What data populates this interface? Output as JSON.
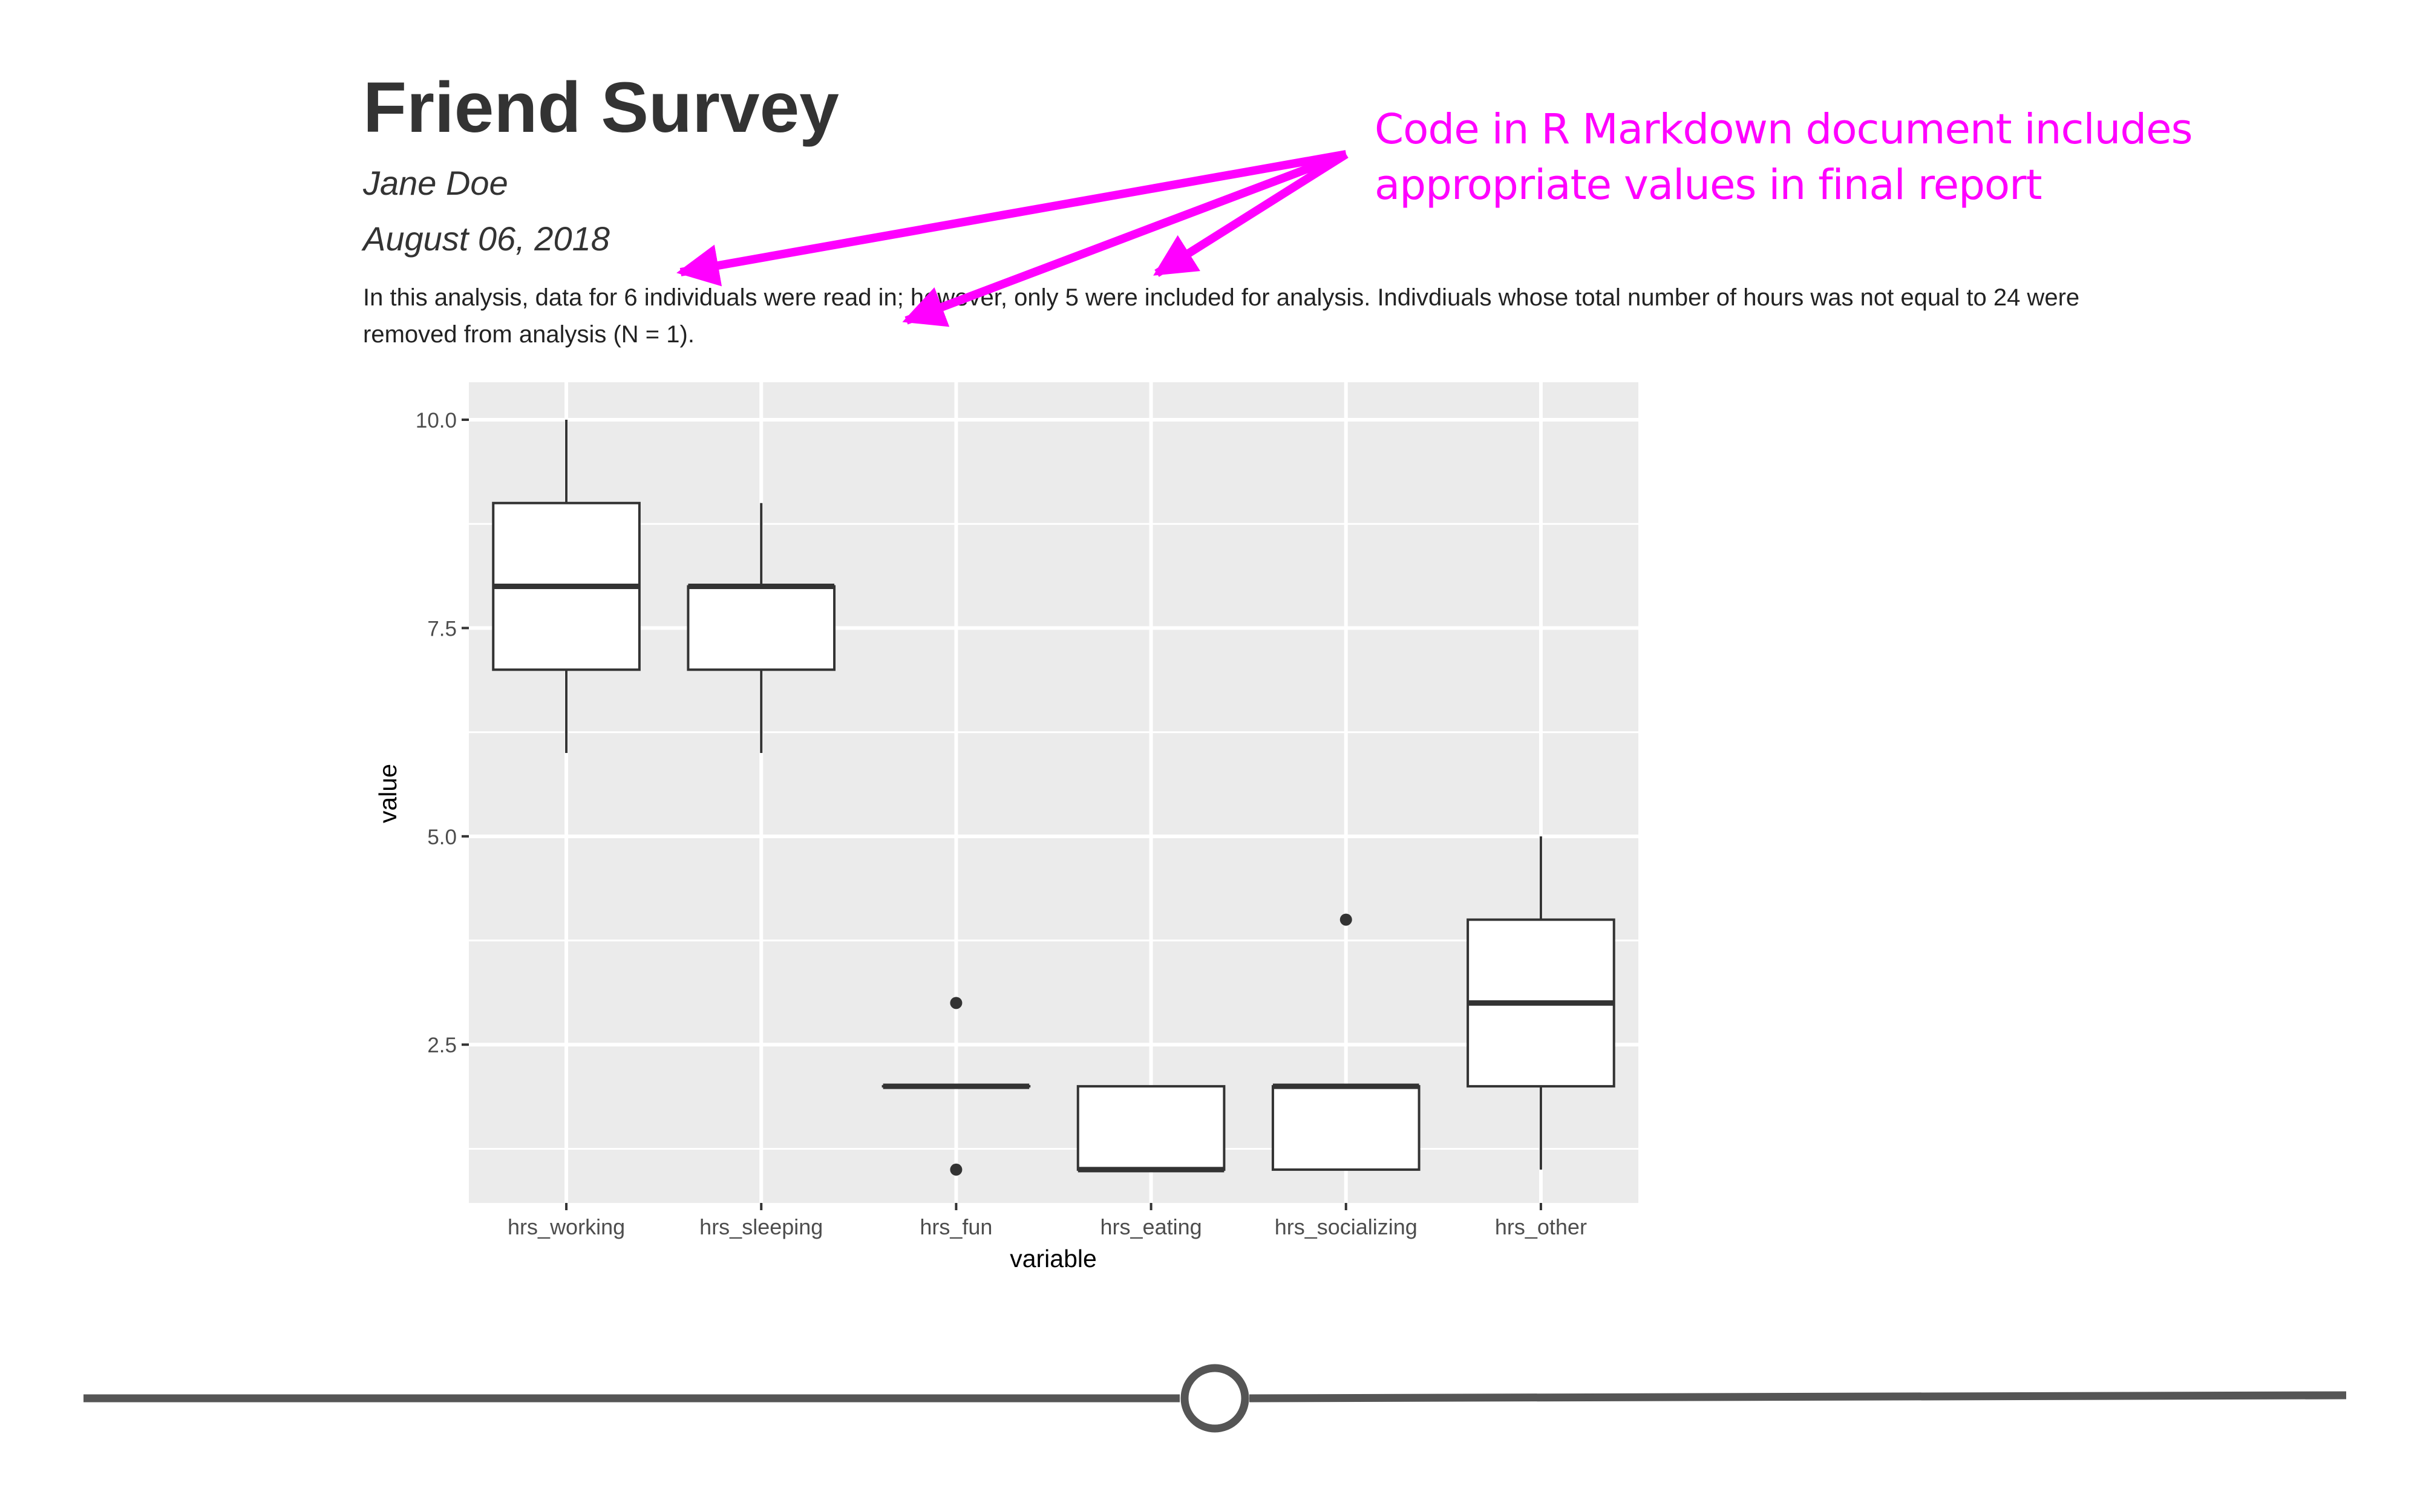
{
  "document": {
    "title": "Friend Survey",
    "author": "Jane Doe",
    "date": "August 06, 2018",
    "body_text": "In this analysis, data for 6 individuals were read in; however, only 5 were included for analysis. Indivdiuals whose total number of hours was not equal to 24 were removed from analysis (N = 1)."
  },
  "annotation": {
    "line1": "Code in R Markdown document includes",
    "line2": "appropriate values in final report",
    "color": "#ff00ff"
  },
  "slider": {
    "value": 0.5
  },
  "colors": {
    "panel": "#ebebeb",
    "grid": "#ffffff",
    "box_fill": "#ffffff",
    "box_stroke": "#333333",
    "axis_text": "#4d4d4d"
  },
  "chart_data": {
    "type": "box",
    "title": "",
    "xlabel": "variable",
    "ylabel": "value",
    "ylim": [
      0.6,
      10.45
    ],
    "yticks": [
      2.5,
      5.0,
      7.5,
      10.0
    ],
    "ytick_labels": [
      "2.5",
      "5.0",
      "7.5",
      "10.0"
    ],
    "minor_grid_y": [
      1.25,
      3.75,
      6.25,
      8.75
    ],
    "grid": true,
    "categories": [
      "hrs_working",
      "hrs_sleeping",
      "hrs_fun",
      "hrs_eating",
      "hrs_socializing",
      "hrs_other"
    ],
    "boxes": [
      {
        "category": "hrs_working",
        "whisker_low": 6,
        "q1": 7,
        "median": 8,
        "q3": 9,
        "whisker_high": 10,
        "outliers": []
      },
      {
        "category": "hrs_sleeping",
        "whisker_low": 6,
        "q1": 7,
        "median": 8,
        "q3": 8,
        "whisker_high": 9,
        "outliers": []
      },
      {
        "category": "hrs_fun",
        "whisker_low": 2,
        "q1": 2,
        "median": 2,
        "q3": 2,
        "whisker_high": 2,
        "outliers": [
          3,
          1
        ]
      },
      {
        "category": "hrs_eating",
        "whisker_low": 1,
        "q1": 1,
        "median": 1,
        "q3": 2,
        "whisker_high": 2,
        "outliers": []
      },
      {
        "category": "hrs_socializing",
        "whisker_low": 1,
        "q1": 1,
        "median": 2,
        "q3": 2,
        "whisker_high": 2,
        "outliers": [
          4
        ]
      },
      {
        "category": "hrs_other",
        "whisker_low": 1,
        "q1": 2,
        "median": 3,
        "q3": 4,
        "whisker_high": 5,
        "outliers": []
      }
    ]
  }
}
